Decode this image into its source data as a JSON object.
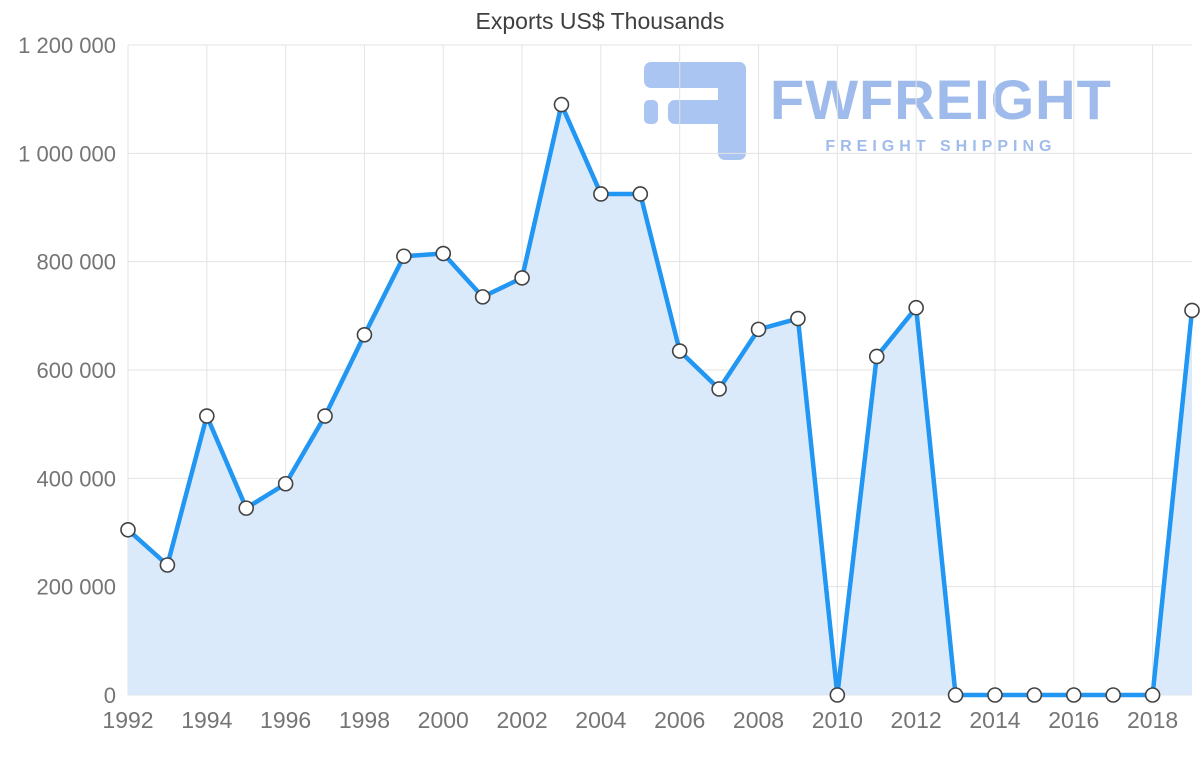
{
  "watermark": {
    "brand": "FWFREIGHT",
    "subtitle": "FREIGHT SHIPPING"
  },
  "colors": {
    "line": "#2196f3",
    "fill": "#daeafb",
    "marker_fill": "#ffffff",
    "marker_stroke": "#424242",
    "grid": "#e3e3e3",
    "tick_text": "#757575",
    "title_text": "#3f3f3f",
    "watermark_text": "#9fbbec",
    "watermark_icon": "#aac5f1"
  },
  "chart_data": {
    "type": "area",
    "title": "Exports US$ Thousands",
    "xlabel": "",
    "ylabel": "",
    "series_name": "Exports US$ Thousands",
    "x": [
      1992,
      1993,
      1994,
      1995,
      1996,
      1997,
      1998,
      1999,
      2000,
      2001,
      2002,
      2003,
      2004,
      2005,
      2006,
      2007,
      2008,
      2009,
      2010,
      2011,
      2012,
      2013,
      2014,
      2015,
      2016,
      2017,
      2018,
      2019
    ],
    "values": [
      305000,
      240000,
      515000,
      345000,
      390000,
      515000,
      665000,
      810000,
      815000,
      735000,
      770000,
      1090000,
      925000,
      925000,
      635000,
      565000,
      675000,
      695000,
      0,
      625000,
      715000,
      0,
      0,
      0,
      0,
      0,
      0,
      710000
    ],
    "ylim": [
      0,
      1200000
    ],
    "ytick_step": 200000,
    "yticks_labels": [
      "0",
      "200 000",
      "400 000",
      "600 000",
      "800 000",
      "1 000 000",
      "1 200 000"
    ],
    "xticks": [
      1992,
      1994,
      1996,
      1998,
      2000,
      2002,
      2004,
      2006,
      2008,
      2010,
      2012,
      2014,
      2016,
      2018
    ],
    "grid": true,
    "legend_position": "none"
  }
}
